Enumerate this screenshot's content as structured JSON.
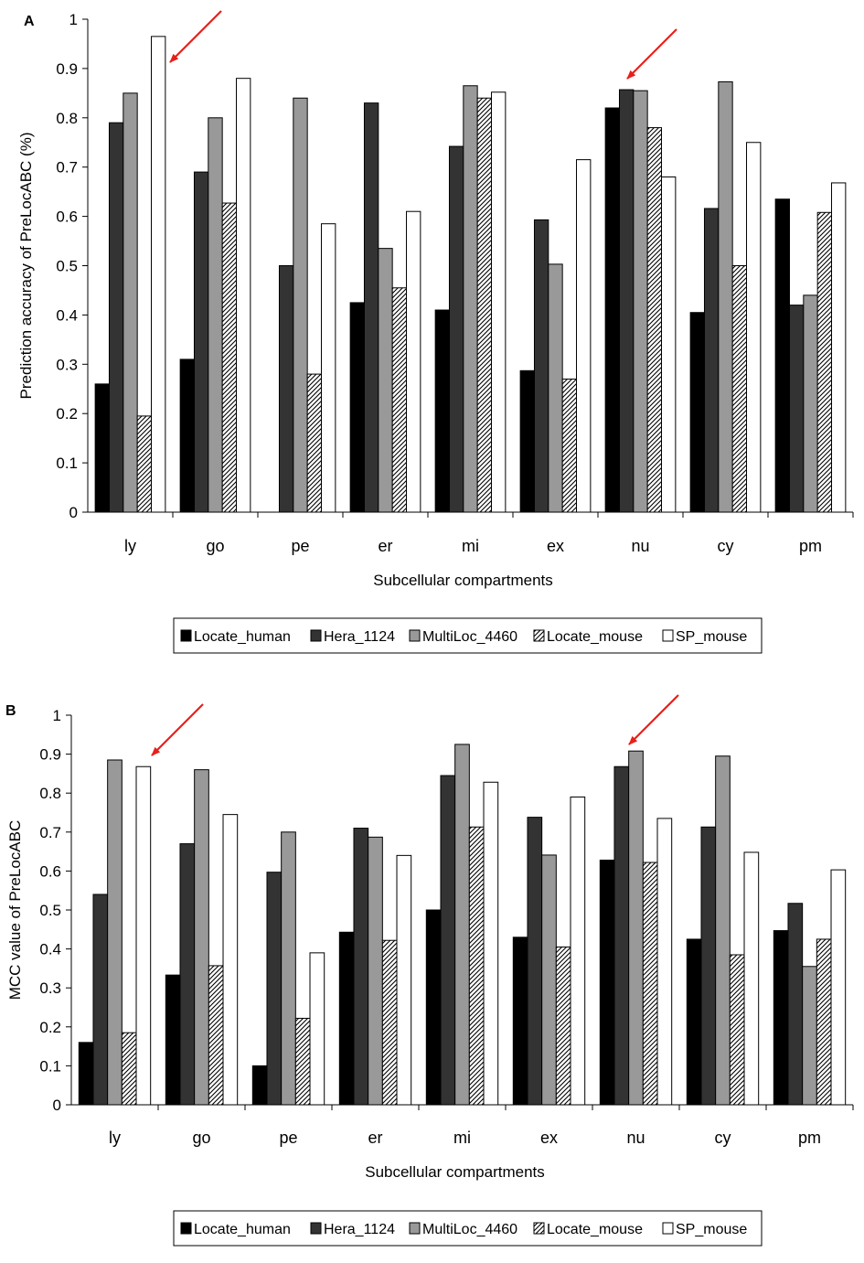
{
  "chart_data": [
    {
      "panel_label": "A",
      "type": "bar",
      "xlabel": "Subcellular compartments",
      "ylabel": "Prediction accuracy of PreLocABC (%)",
      "ylim": [
        0,
        1
      ],
      "yticks": [
        "0",
        "0.1",
        "0.2",
        "0.3",
        "0.4",
        "0.5",
        "0.6",
        "0.7",
        "0.8",
        "0.9",
        "1"
      ],
      "grid": false,
      "legend_position": "bottom",
      "categories": [
        "ly",
        "go",
        "pe",
        "er",
        "mi",
        "ex",
        "nu",
        "cy",
        "pm"
      ],
      "series": [
        {
          "name": "Locate_human",
          "values": [
            0.26,
            0.31,
            0,
            0.425,
            0.41,
            0.287,
            0.82,
            0.405,
            0.635
          ]
        },
        {
          "name": "Hera_1124",
          "values": [
            0.79,
            0.69,
            0.5,
            0.83,
            0.742,
            0.593,
            0.857,
            0.616,
            0.42
          ]
        },
        {
          "name": "MultiLoc_4460",
          "values": [
            0.85,
            0.8,
            0.84,
            0.535,
            0.865,
            0.503,
            0.855,
            0.873,
            0.44
          ]
        },
        {
          "name": "Locate_mouse",
          "values": [
            0.195,
            0.627,
            0.28,
            0.455,
            0.84,
            0.27,
            0.78,
            0.5,
            0.608
          ]
        },
        {
          "name": "SP_mouse",
          "values": [
            0.965,
            0.88,
            0.585,
            0.61,
            0.852,
            0.715,
            0.68,
            0.75,
            0.668
          ]
        }
      ],
      "annotations": [
        {
          "type": "arrow",
          "target": "ly"
        },
        {
          "type": "arrow",
          "target": "nu"
        }
      ]
    },
    {
      "panel_label": "B",
      "type": "bar",
      "xlabel": "Subcellular compartments",
      "ylabel": "MCC value of PreLocABC",
      "ylim": [
        0,
        1
      ],
      "yticks": [
        "0",
        "0.1",
        "0.2",
        "0.3",
        "0.4",
        "0.5",
        "0.6",
        "0.7",
        "0.8",
        "0.9",
        "1"
      ],
      "grid": false,
      "legend_position": "bottom",
      "categories": [
        "ly",
        "go",
        "pe",
        "er",
        "mi",
        "ex",
        "nu",
        "cy",
        "pm"
      ],
      "series": [
        {
          "name": "Locate_human",
          "values": [
            0.16,
            0.333,
            0.1,
            0.443,
            0.5,
            0.43,
            0.628,
            0.425,
            0.447
          ]
        },
        {
          "name": "Hera_1124",
          "values": [
            0.54,
            0.67,
            0.597,
            0.71,
            0.845,
            0.738,
            0.868,
            0.713,
            0.517
          ]
        },
        {
          "name": "MultiLoc_4460",
          "values": [
            0.885,
            0.86,
            0.7,
            0.687,
            0.925,
            0.641,
            0.908,
            0.895,
            0.355
          ]
        },
        {
          "name": "Locate_mouse",
          "values": [
            0.185,
            0.357,
            0.222,
            0.422,
            0.713,
            0.405,
            0.622,
            0.385,
            0.425
          ]
        },
        {
          "name": "SP_mouse",
          "values": [
            0.868,
            0.745,
            0.39,
            0.64,
            0.828,
            0.79,
            0.735,
            0.648,
            0.603
          ]
        }
      ],
      "annotations": [
        {
          "type": "arrow",
          "target": "ly"
        },
        {
          "type": "arrow",
          "target": "nu"
        }
      ]
    }
  ],
  "legend": {
    "entries": [
      "Locate_human",
      "Hera_1124",
      "MultiLoc_4460",
      "Locate_mouse",
      "SP_mouse"
    ],
    "fills": [
      "#000000",
      "#333333",
      "#999999",
      "hatch",
      "#ffffff"
    ]
  },
  "colors": {
    "Locate_human": "#000000",
    "Hera_1124": "#333333",
    "MultiLoc_4460": "#999999",
    "Locate_mouse": "hatch",
    "SP_mouse": "#ffffff",
    "arrow": "#e8201a"
  }
}
